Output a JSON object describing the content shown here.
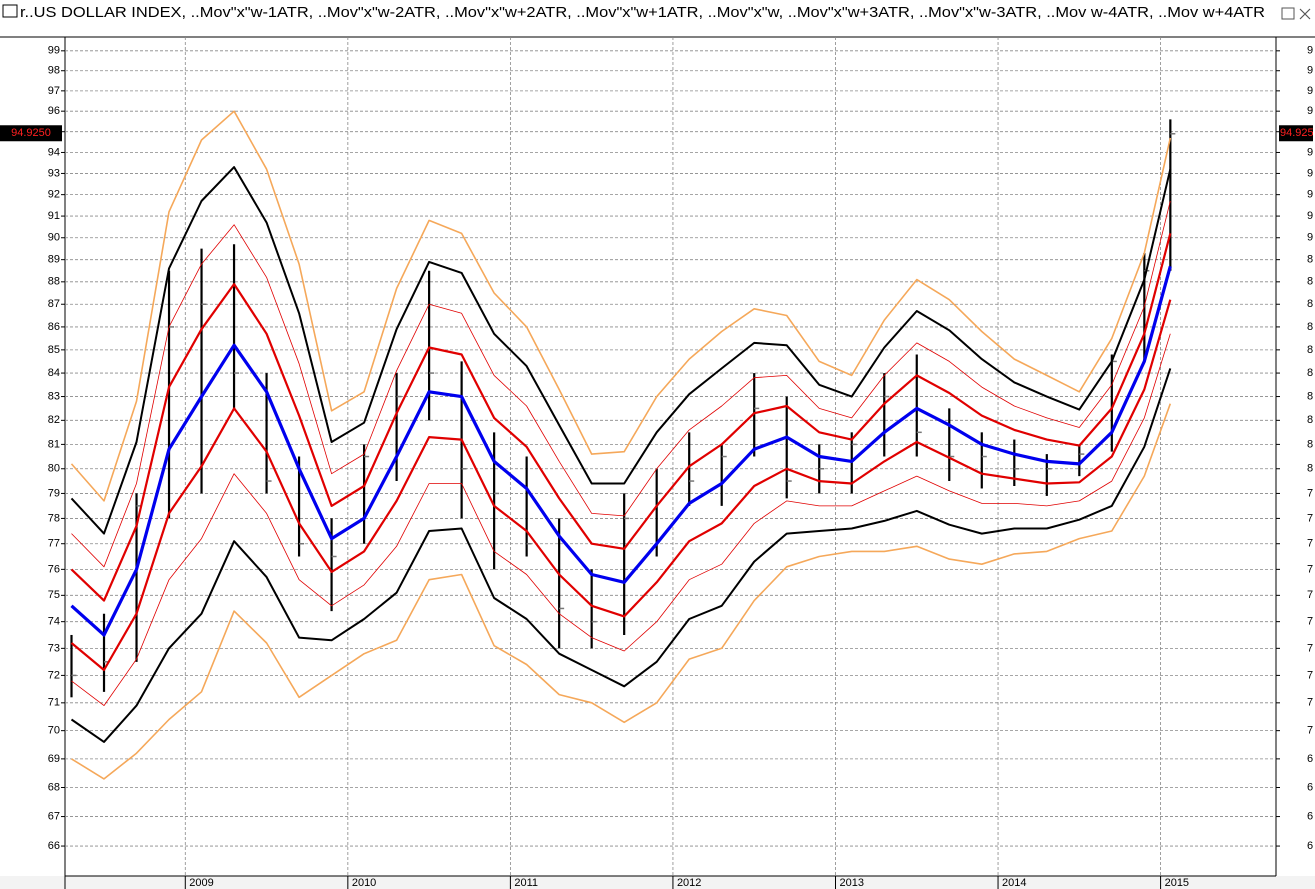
{
  "chart_data": {
    "type": "line",
    "title": "r..US DOLLAR INDEX, ..Mov\"x\"w-1ATR, ..Mov\"x\"w-2ATR, ..Mov\"x\"w+2ATR, ..Mov\"x\"w+1ATR, ..Mov\"x\"w, ..Mov\"x\"w+3ATR, ..Mov\"x\"w-3ATR, ..Mov w-4ATR, ..Mov w+4ATR",
    "log_scale": true,
    "grid": true,
    "x": [
      2008.3,
      2008.5,
      2008.7,
      2008.9,
      2009.1,
      2009.3,
      2009.5,
      2009.7,
      2009.9,
      2010.1,
      2010.3,
      2010.5,
      2010.7,
      2010.9,
      2011.1,
      2011.3,
      2011.5,
      2011.7,
      2011.9,
      2012.1,
      2012.3,
      2012.5,
      2012.7,
      2012.9,
      2013.1,
      2013.3,
      2013.5,
      2013.7,
      2013.9,
      2014.1,
      2014.3,
      2014.5,
      2014.7,
      2014.9,
      2015.06
    ],
    "xlim": [
      2008.26,
      2015.71
    ],
    "xticks": [
      2009,
      2010,
      2011,
      2012,
      2013,
      2014,
      2015
    ],
    "ylim": [
      65,
      99.7
    ],
    "yticks": [
      66,
      67,
      68,
      69,
      70,
      71,
      72,
      73,
      74,
      75,
      76,
      77,
      78,
      79,
      80,
      81,
      82,
      83,
      84,
      85,
      86,
      87,
      88,
      89,
      90,
      91,
      92,
      93,
      94,
      95,
      96,
      97,
      98,
      99
    ],
    "price": {
      "color": "#000000",
      "high": [
        73.5,
        74.3,
        79,
        88.5,
        89.5,
        89.7,
        84,
        80.5,
        78,
        81,
        84,
        88.5,
        84.5,
        81.5,
        80.5,
        78,
        76,
        79,
        80,
        81.5,
        81,
        84,
        83,
        81,
        81.5,
        84,
        84.8,
        82.5,
        81.5,
        81.2,
        80.6,
        81,
        84.8,
        89.3,
        95.6
      ],
      "low": [
        71.2,
        71.4,
        72.5,
        78,
        79,
        82.5,
        79,
        76.5,
        74.4,
        77,
        79.5,
        82,
        78,
        76,
        76.5,
        73,
        73,
        73.5,
        76.5,
        78.5,
        78.5,
        80.5,
        78.8,
        79,
        79,
        80.5,
        80.5,
        79.5,
        79.2,
        79.3,
        78.9,
        79.7,
        80.7,
        84.5,
        88.5
      ],
      "close": [
        72,
        72.5,
        78.5,
        86,
        87,
        84,
        79.5,
        77,
        76.5,
        80.5,
        83,
        84,
        80,
        79,
        77,
        74.5,
        74,
        78,
        79,
        79.5,
        80.5,
        82.5,
        79.5,
        80,
        81,
        83,
        81.5,
        80.5,
        80.5,
        80,
        80,
        80.6,
        84.5,
        88.5,
        94.9
      ]
    },
    "series": [
      {
        "color": "#e00000",
        "width": 2.2,
        "values": [
          73.2,
          72.2,
          74.3,
          78.2,
          80.1,
          82.5,
          80.7,
          77.8,
          75.9,
          76.7,
          78.7,
          81.3,
          81.2,
          78.5,
          77.5,
          75.8,
          74.6,
          74.2,
          75.5,
          77.1,
          77.8,
          79.3,
          80.0,
          79.5,
          79.4,
          80.3,
          81.1,
          80.45,
          79.8,
          79.6,
          79.4,
          79.45,
          80.5,
          83.3,
          87.2
        ]
      },
      {
        "color": "#e00000",
        "width": 0.8,
        "values": [
          71.8,
          70.9,
          72.6,
          75.6,
          77.2,
          79.8,
          78.2,
          75.6,
          74.6,
          75.4,
          76.9,
          79.4,
          79.4,
          76.7,
          75.8,
          74.3,
          73.4,
          72.9,
          74.0,
          75.6,
          76.2,
          77.8,
          78.7,
          78.5,
          78.5,
          79.1,
          79.7,
          79.1,
          78.6,
          78.6,
          78.5,
          78.7,
          79.5,
          82.1,
          85.7
        ]
      },
      {
        "color": "#e00000",
        "width": 0.8,
        "values": [
          77.4,
          76.1,
          79.4,
          86.0,
          88.8,
          90.6,
          88.2,
          84.4,
          79.8,
          80.6,
          84.1,
          87.0,
          86.6,
          83.9,
          82.6,
          80.3,
          78.2,
          78.1,
          80.0,
          81.6,
          82.6,
          83.8,
          83.9,
          82.5,
          82.1,
          83.9,
          85.3,
          84.5,
          83.4,
          82.6,
          82.1,
          81.7,
          83.5,
          86.9,
          91.7
        ]
      },
      {
        "color": "#e00000",
        "width": 2.2,
        "values": [
          76.0,
          74.8,
          77.7,
          83.4,
          85.9,
          87.9,
          85.7,
          82.2,
          78.5,
          79.3,
          82.3,
          85.1,
          84.8,
          82.1,
          80.9,
          78.8,
          77.0,
          76.8,
          78.5,
          80.1,
          81.0,
          82.3,
          82.6,
          81.5,
          81.2,
          82.7,
          83.9,
          83.15,
          82.2,
          81.6,
          81.2,
          80.95,
          82.5,
          85.7,
          90.2
        ]
      },
      {
        "color": "#0000ee",
        "width": 3.2,
        "values": [
          74.6,
          73.5,
          76.0,
          80.8,
          83.0,
          85.2,
          83.2,
          80.0,
          77.2,
          78.0,
          80.5,
          83.2,
          83.0,
          80.3,
          79.2,
          77.3,
          75.8,
          75.5,
          77.0,
          78.6,
          79.4,
          80.8,
          81.3,
          80.5,
          80.3,
          81.5,
          82.5,
          81.8,
          81.0,
          80.6,
          80.3,
          80.2,
          81.5,
          84.5,
          88.7
        ]
      },
      {
        "color": "#000000",
        "width": 2,
        "values": [
          78.8,
          77.4,
          81.1,
          88.6,
          91.7,
          93.3,
          90.7,
          86.6,
          81.1,
          81.9,
          85.9,
          88.9,
          88.4,
          85.7,
          84.3,
          81.8,
          79.4,
          79.4,
          81.5,
          83.1,
          84.2,
          85.3,
          85.2,
          83.5,
          83.0,
          85.1,
          86.7,
          85.85,
          84.6,
          83.6,
          83.0,
          82.45,
          84.5,
          88.1,
          93.2
        ]
      },
      {
        "color": "#000000",
        "width": 2,
        "values": [
          70.4,
          69.6,
          70.9,
          73.0,
          74.3,
          77.1,
          75.7,
          73.4,
          73.3,
          74.1,
          75.1,
          77.5,
          77.6,
          74.9,
          74.1,
          72.8,
          72.2,
          71.6,
          72.5,
          74.1,
          74.6,
          76.3,
          77.4,
          77.5,
          77.6,
          77.9,
          78.3,
          77.75,
          77.4,
          77.6,
          77.6,
          77.95,
          78.5,
          80.9,
          84.2
        ]
      },
      {
        "color": "#f5a85a",
        "width": 1.6,
        "values": [
          69.0,
          68.3,
          69.2,
          70.4,
          71.4,
          74.4,
          73.2,
          71.2,
          72.0,
          72.8,
          73.3,
          75.6,
          75.8,
          73.1,
          72.4,
          71.3,
          71.0,
          70.3,
          71.0,
          72.6,
          73.0,
          74.8,
          76.1,
          76.5,
          76.7,
          76.7,
          76.9,
          76.4,
          76.2,
          76.6,
          76.7,
          77.2,
          77.5,
          79.7,
          82.7
        ]
      },
      {
        "color": "#f5a85a",
        "width": 1.6,
        "values": [
          80.2,
          78.7,
          82.8,
          91.2,
          94.6,
          96.0,
          93.2,
          88.8,
          82.4,
          83.2,
          87.7,
          90.8,
          90.2,
          87.5,
          86.0,
          83.3,
          80.6,
          80.7,
          83.0,
          84.6,
          85.8,
          86.8,
          86.5,
          84.5,
          83.9,
          86.3,
          88.1,
          87.2,
          85.8,
          84.6,
          83.9,
          83.2,
          85.5,
          89.3,
          94.7
        ]
      }
    ],
    "last_value": 94.925,
    "last_value_label": "94.9250"
  }
}
